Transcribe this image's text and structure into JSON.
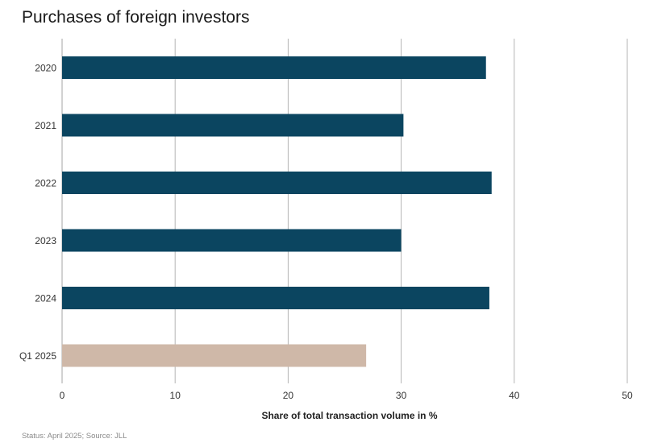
{
  "title": "Purchases of foreign investors",
  "footer": "Status: April 2025; Source: JLL",
  "colors": {
    "primary_bar": "#0b4560",
    "highlight_bar": "#cfb8a8",
    "grid": "#b5b5b5"
  },
  "chart_data": {
    "type": "bar",
    "orientation": "horizontal",
    "categories": [
      "2020",
      "2021",
      "2022",
      "2023",
      "2024",
      "Q1 2025"
    ],
    "values": [
      37.5,
      30.2,
      38.0,
      30.0,
      37.8,
      26.9
    ],
    "highlighted": [
      "Q1 2025"
    ],
    "xlabel": "Share of total transaction volume in %",
    "ylabel": "",
    "xlim": [
      0,
      50
    ],
    "xticks": [
      0,
      10,
      20,
      30,
      40,
      50
    ],
    "grid": "vertical"
  }
}
